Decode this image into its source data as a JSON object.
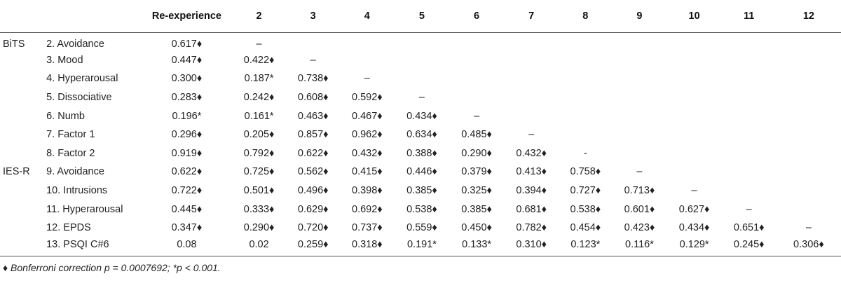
{
  "table": {
    "headers": [
      "",
      "",
      "Re-experience",
      "2",
      "3",
      "4",
      "5",
      "6",
      "7",
      "8",
      "9",
      "10",
      "11",
      "12"
    ],
    "rows": [
      {
        "group": "BiTS",
        "label": "2. Avoidance",
        "cells": [
          "0.617♦",
          "–",
          "",
          "",
          "",
          "",
          "",
          "",
          "",
          "",
          "",
          ""
        ]
      },
      {
        "group": "",
        "label": "3. Mood",
        "cells": [
          "0.447♦",
          "0.422♦",
          "–",
          "",
          "",
          "",
          "",
          "",
          "",
          "",
          "",
          ""
        ]
      },
      {
        "group": "",
        "label": "4. Hyperarousal",
        "cells": [
          "0.300♦",
          "0.187*",
          "0.738♦",
          "–",
          "",
          "",
          "",
          "",
          "",
          "",
          "",
          ""
        ]
      },
      {
        "group": "",
        "label": "5. Dissociative",
        "cells": [
          "0.283♦",
          "0.242♦",
          "0.608♦",
          "0.592♦",
          "–",
          "",
          "",
          "",
          "",
          "",
          "",
          ""
        ]
      },
      {
        "group": "",
        "label": "6. Numb",
        "cells": [
          "0.196*",
          "0.161*",
          "0.463♦",
          "0.467♦",
          "0.434♦",
          "–",
          "",
          "",
          "",
          "",
          "",
          ""
        ]
      },
      {
        "group": "",
        "label": "7. Factor 1",
        "cells": [
          "0.296♦",
          "0.205♦",
          "0.857♦",
          "0.962♦",
          "0.634♦",
          "0.485♦",
          "–",
          "",
          "",
          "",
          "",
          ""
        ]
      },
      {
        "group": "",
        "label": "8. Factor 2",
        "cells": [
          "0.919♦",
          "0.792♦",
          "0.622♦",
          "0.432♦",
          "0.388♦",
          "0.290♦",
          "0.432♦",
          "-",
          "",
          "",
          "",
          ""
        ]
      },
      {
        "group": "IES-R",
        "label": "9. Avoidance",
        "cells": [
          "0.622♦",
          "0.725♦",
          "0.562♦",
          "0.415♦",
          "0.446♦",
          "0.379♦",
          "0.413♦",
          "0.758♦",
          "–",
          "",
          "",
          ""
        ]
      },
      {
        "group": "",
        "label": "10. Intrusions",
        "cells": [
          "0.722♦",
          "0.501♦",
          "0.496♦",
          "0.398♦",
          "0.385♦",
          "0.325♦",
          "0.394♦",
          "0.727♦",
          "0.713♦",
          "–",
          "",
          ""
        ]
      },
      {
        "group": "",
        "label": "11. Hyperarousal",
        "cells": [
          "0.445♦",
          "0.333♦",
          "0.629♦",
          "0.692♦",
          "0.538♦",
          "0.385♦",
          "0.681♦",
          "0.538♦",
          "0.601♦",
          "0.627♦",
          "–",
          ""
        ]
      },
      {
        "group": "",
        "label": "12. EPDS",
        "cells": [
          "0.347♦",
          "0.290♦",
          "0.720♦",
          "0.737♦",
          "0.559♦",
          "0.450♦",
          "0.782♦",
          "0.454♦",
          "0.423♦",
          "0.434♦",
          "0.651♦",
          "–"
        ]
      },
      {
        "group": "",
        "label": "13. PSQI C#6",
        "cells": [
          "0.08",
          "0.02",
          "0.259♦",
          "0.318♦",
          "0.191*",
          "0.133*",
          "0.310♦",
          "0.123*",
          "0.116*",
          "0.129*",
          "0.245♦",
          "0.306♦"
        ]
      }
    ]
  },
  "footnote": "♦ Bonferroni correction p = 0.0007692; *p < 0.001."
}
